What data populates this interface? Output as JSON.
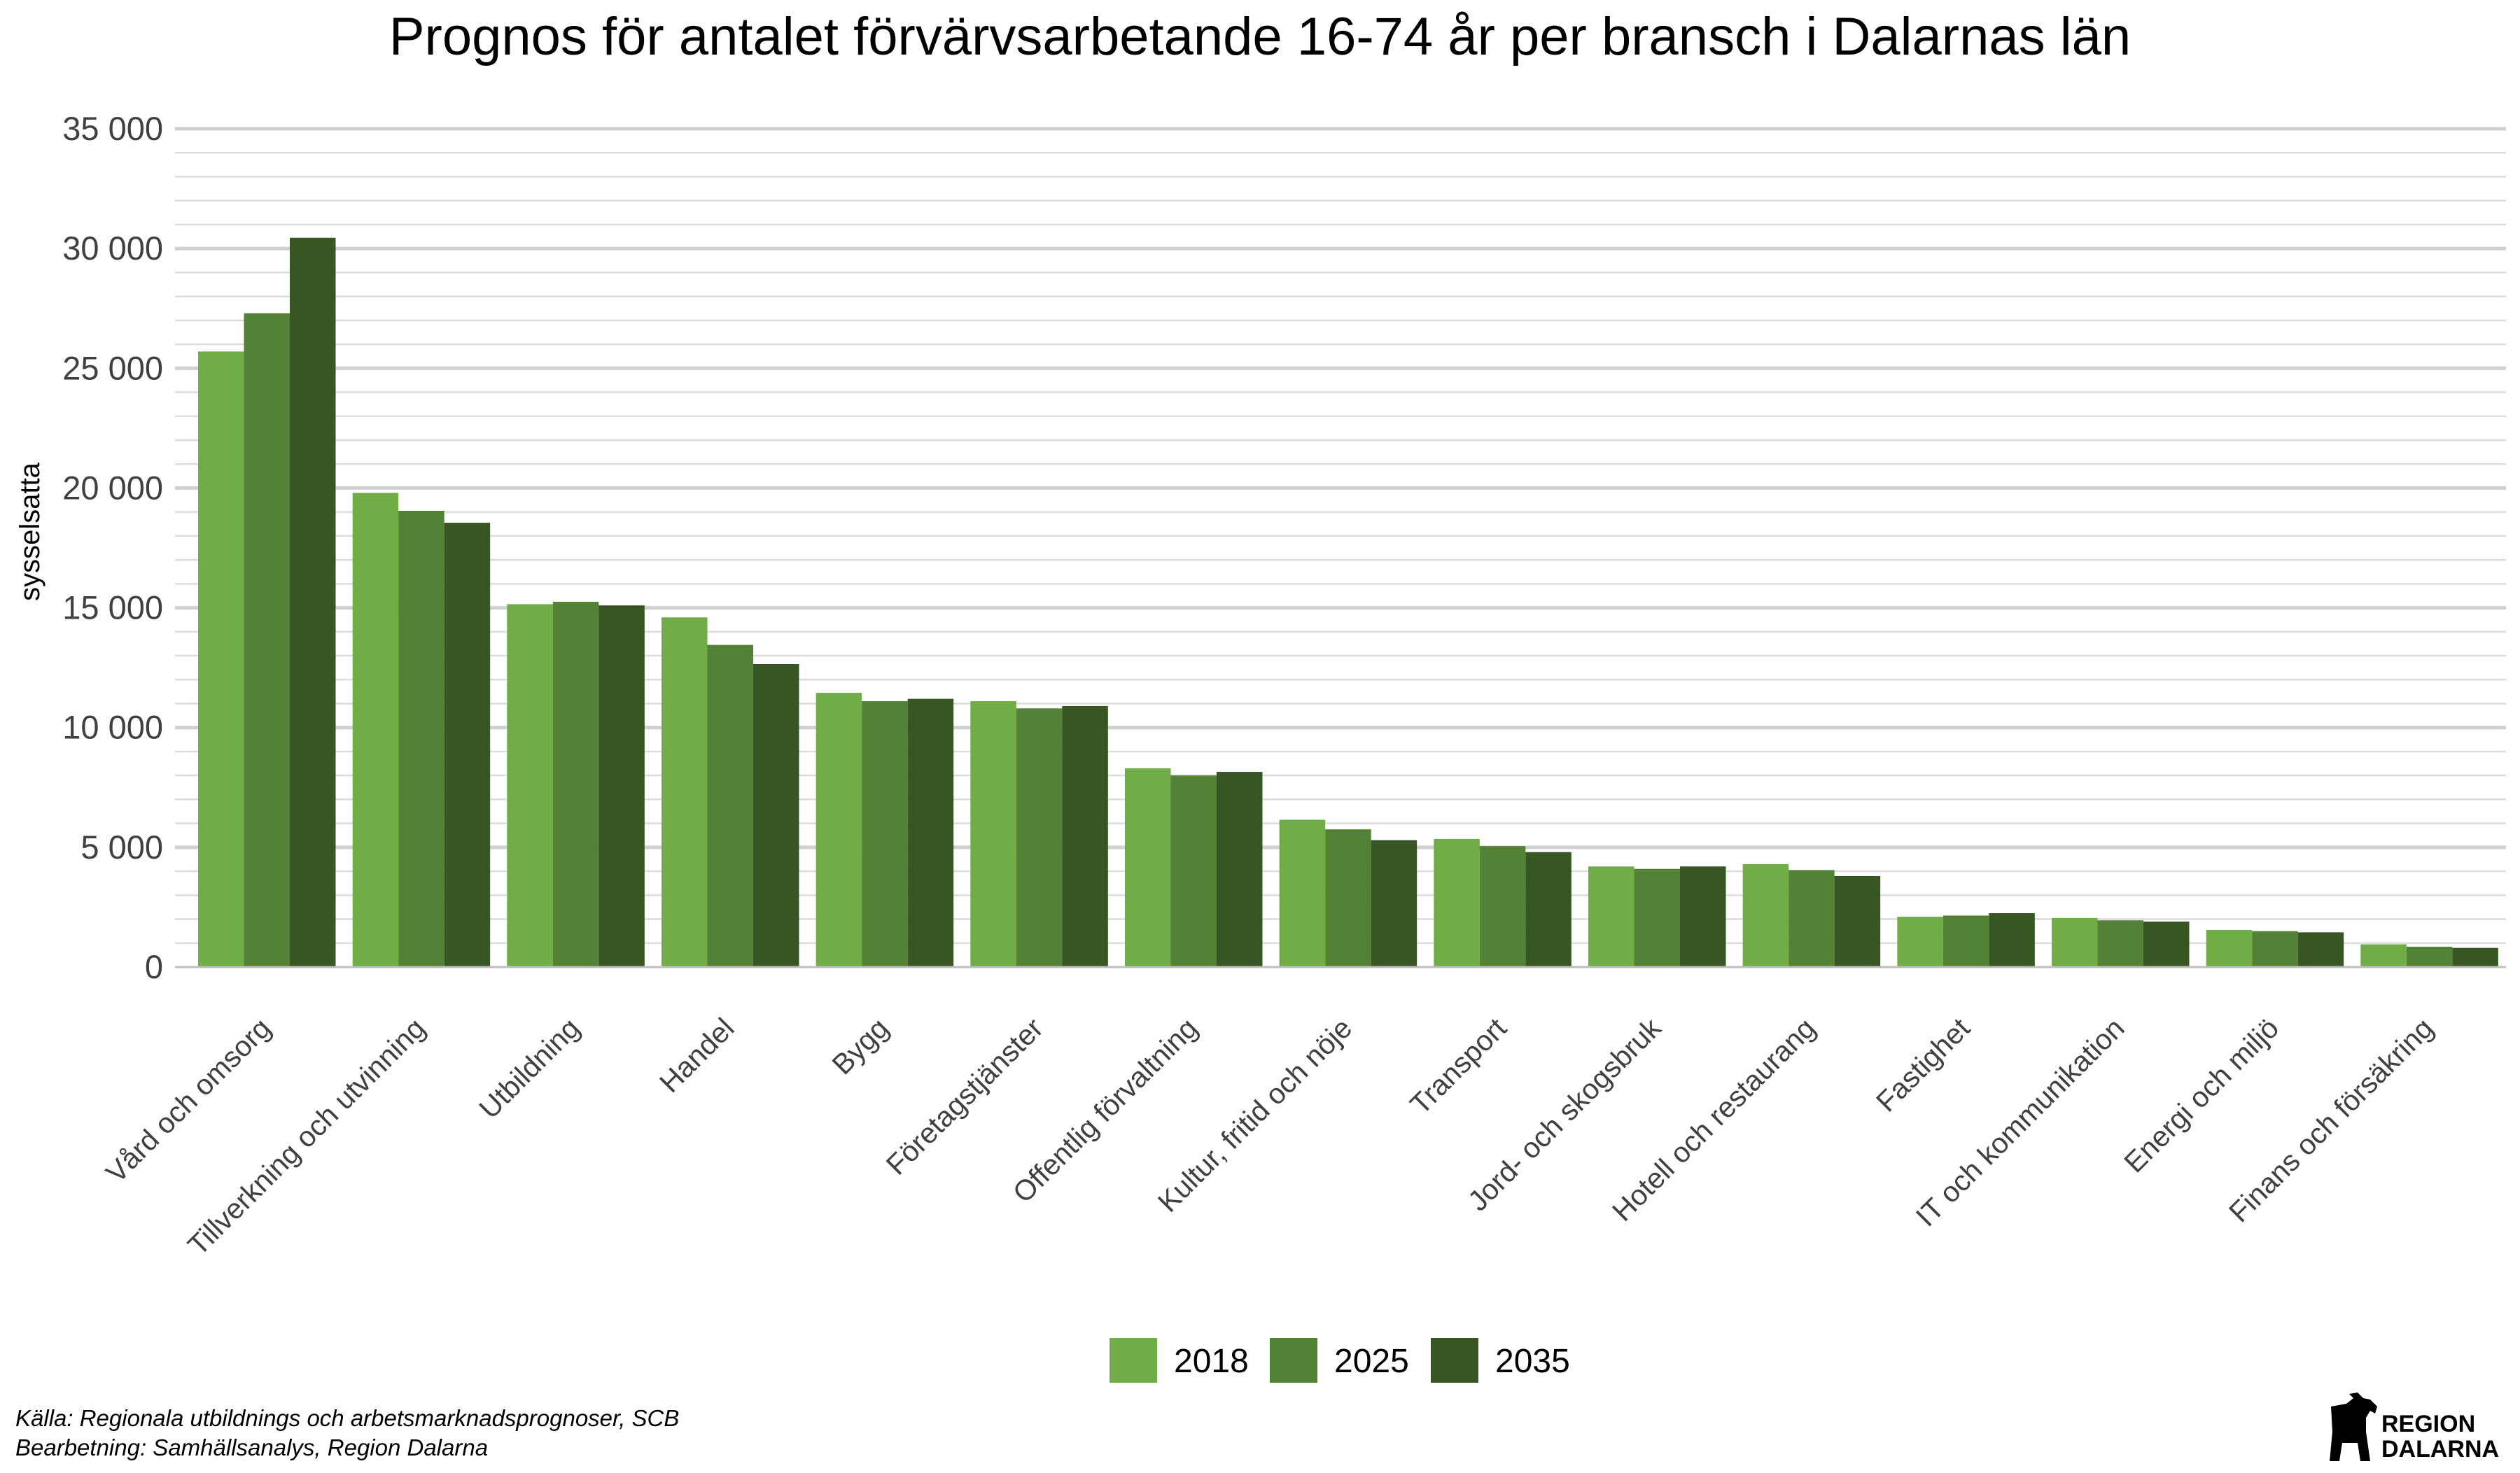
{
  "chart_data": {
    "type": "bar",
    "title": "Prognos för antalet förvärvsarbetande 16-74 år per bransch i Dalarnas län",
    "ylabel": "sysselsatta",
    "xlabel": "",
    "ylim": [
      0,
      35000
    ],
    "yticks": [
      0,
      5000,
      10000,
      15000,
      20000,
      25000,
      30000,
      35000
    ],
    "ytick_labels": [
      "0",
      "5 000",
      "10 000",
      "15 000",
      "20 000",
      "25 000",
      "30 000",
      "35 000"
    ],
    "grid": true,
    "legend_position": "bottom",
    "categories": [
      "Vård och omsorg",
      "Tillverkning och utvinning",
      "Utbildning",
      "Handel",
      "Bygg",
      "Företagstjänster",
      "Offentlig förvaltning",
      "Kultur, fritid och nöje",
      "Transport",
      "Jord- och skogsbruk",
      "Hotell och restaurang",
      "Fastighet",
      "IT och kommunikation",
      "Energi och miljö",
      "Finans och försäkring"
    ],
    "series": [
      {
        "name": "2018",
        "color": "#70ad47",
        "values": [
          25700,
          19800,
          15150,
          14600,
          11450,
          11100,
          8300,
          6150,
          5350,
          4200,
          4300,
          2100,
          2050,
          1550,
          950
        ]
      },
      {
        "name": "2025",
        "color": "#538135",
        "values": [
          27300,
          19050,
          15250,
          13450,
          11100,
          10800,
          8000,
          5750,
          5050,
          4100,
          4050,
          2150,
          1950,
          1500,
          850
        ]
      },
      {
        "name": "2035",
        "color": "#375623",
        "values": [
          30450,
          18550,
          15100,
          12650,
          11200,
          10900,
          8150,
          5300,
          4800,
          4200,
          3800,
          2250,
          1900,
          1450,
          800
        ]
      }
    ]
  },
  "footer": {
    "source_line1": "Källa: Regionala utbildnings och arbetsmarknadsprognoser, SCB",
    "source_line2": "Bearbetning: Samhällsanalys, Region Dalarna"
  },
  "logo": {
    "line1": "REGION",
    "line2": "DALARNA",
    "icon": "dala-horse-icon"
  }
}
